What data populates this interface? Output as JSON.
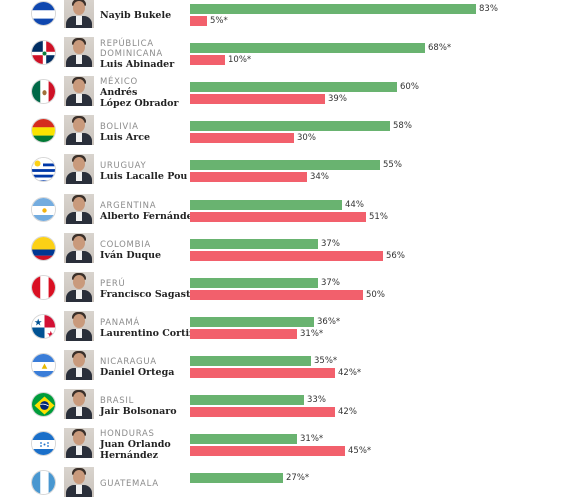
{
  "colors": {
    "approve": "#69b370",
    "disapprove": "#f2606c"
  },
  "chart_data": {
    "type": "bar",
    "orientation": "horizontal",
    "grouped": true,
    "xlim": [
      0,
      100
    ],
    "value_suffix": "%",
    "series_colors": [
      "#69b370",
      "#f2606c"
    ],
    "rows": [
      {
        "country": "",
        "leader": "Nayib Bukele",
        "values": [
          83,
          5
        ],
        "labels": [
          "83%",
          "5%*"
        ],
        "flag": "el-salvador",
        "partial": true
      },
      {
        "country": "República Dominicana",
        "leader": "Luis Abinader",
        "values": [
          68,
          10
        ],
        "labels": [
          "68%*",
          "10%*"
        ],
        "flag": "dominican-republic"
      },
      {
        "country": "México",
        "leader": "Andrés López Obrador",
        "values": [
          60,
          39
        ],
        "labels": [
          "60%",
          "39%"
        ],
        "flag": "mexico"
      },
      {
        "country": "Bolivia",
        "leader": "Luis Arce",
        "values": [
          58,
          30
        ],
        "labels": [
          "58%",
          "30%"
        ],
        "flag": "bolivia"
      },
      {
        "country": "Uruguay",
        "leader": "Luis Lacalle Pou",
        "values": [
          55,
          34
        ],
        "labels": [
          "55%",
          "34%"
        ],
        "flag": "uruguay"
      },
      {
        "country": "Argentina",
        "leader": "Alberto Fernández",
        "values": [
          44,
          51
        ],
        "labels": [
          "44%",
          "51%"
        ],
        "flag": "argentina"
      },
      {
        "country": "Colombia",
        "leader": "Iván Duque",
        "values": [
          37,
          56
        ],
        "labels": [
          "37%",
          "56%"
        ],
        "flag": "colombia"
      },
      {
        "country": "Perú",
        "leader": "Francisco Sagasti",
        "values": [
          37,
          50
        ],
        "labels": [
          "37%",
          "50%"
        ],
        "flag": "peru"
      },
      {
        "country": "Panamá",
        "leader": "Laurentino Cortizo",
        "values": [
          36,
          31
        ],
        "labels": [
          "36%*",
          "31%*"
        ],
        "flag": "panama"
      },
      {
        "country": "Nicaragua",
        "leader": "Daniel Ortega",
        "values": [
          35,
          42
        ],
        "labels": [
          "35%*",
          "42%*"
        ],
        "flag": "nicaragua"
      },
      {
        "country": "Brasil",
        "leader": "Jair Bolsonaro",
        "values": [
          33,
          42
        ],
        "labels": [
          "33%",
          "42%"
        ],
        "flag": "brazil"
      },
      {
        "country": "Honduras",
        "leader": "Juan Orlando Hernández",
        "values": [
          31,
          45
        ],
        "labels": [
          "31%*",
          "45%*"
        ],
        "flag": "honduras"
      },
      {
        "country": "Guatemala",
        "leader": "",
        "values": [
          27
        ],
        "labels": [
          "27%*"
        ],
        "flag": "guatemala",
        "partial": true
      }
    ]
  }
}
